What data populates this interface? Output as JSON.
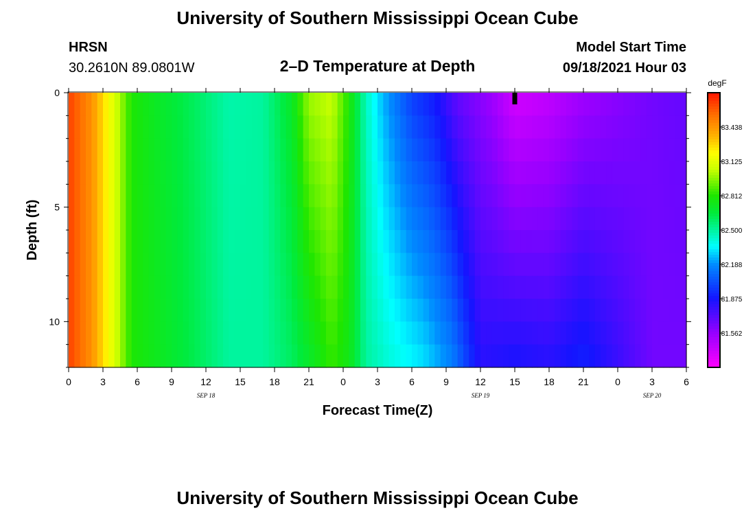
{
  "page": {
    "title_top": "University of Southern Mississippi Ocean Cube",
    "title_bottom": "University of Southern Mississippi Ocean Cube",
    "station_id": "HRSN",
    "station_coords": "30.2610N  89.0801W",
    "subtitle": "2–D Temperature at Depth",
    "model_label": "Model Start Time",
    "model_time": "09/18/2021 Hour 03"
  },
  "chart_data": {
    "type": "heatmap",
    "title": "2–D Temperature at Depth",
    "xlabel": "Forecast Time(Z)",
    "ylabel": "Depth (ft)",
    "units": "degF",
    "x_hours_range": [
      0,
      54
    ],
    "ylim": [
      0,
      12
    ],
    "x_ticks": [
      {
        "h": 0,
        "label": "0"
      },
      {
        "h": 3,
        "label": "3"
      },
      {
        "h": 6,
        "label": "6"
      },
      {
        "h": 9,
        "label": "9"
      },
      {
        "h": 12,
        "label": "12"
      },
      {
        "h": 15,
        "label": "15"
      },
      {
        "h": 18,
        "label": "18"
      },
      {
        "h": 21,
        "label": "21"
      },
      {
        "h": 24,
        "label": "0"
      },
      {
        "h": 27,
        "label": "3"
      },
      {
        "h": 30,
        "label": "6"
      },
      {
        "h": 33,
        "label": "9"
      },
      {
        "h": 36,
        "label": "12"
      },
      {
        "h": 39,
        "label": "15"
      },
      {
        "h": 42,
        "label": "18"
      },
      {
        "h": 45,
        "label": "21"
      },
      {
        "h": 48,
        "label": "0"
      },
      {
        "h": 51,
        "label": "3"
      },
      {
        "h": 54,
        "label": "6"
      }
    ],
    "date_labels": [
      {
        "h": 12,
        "label": "SEP 18"
      },
      {
        "h": 36,
        "label": "SEP 19"
      },
      {
        "h": 51,
        "label": "SEP 20"
      }
    ],
    "y_ticks": [
      {
        "d": 0,
        "label": "0"
      },
      {
        "d": 5,
        "label": "5"
      },
      {
        "d": 10,
        "label": "10"
      }
    ],
    "current_time_marker_h": 39,
    "colorbar": {
      "min": 81.25,
      "max": 83.75,
      "ticks": [
        "83.438",
        "83.125",
        "82.812",
        "82.500",
        "82.188",
        "81.875",
        "81.562"
      ]
    },
    "depth_layers_ft": [
      0,
      1,
      2,
      3,
      4,
      5,
      6,
      7,
      8,
      9,
      10,
      11
    ],
    "temperature_profile_surface": [
      {
        "h": 0,
        "t": 83.65
      },
      {
        "h": 2,
        "t": 83.45
      },
      {
        "h": 4,
        "t": 83.1
      },
      {
        "h": 5.5,
        "t": 82.8
      },
      {
        "h": 8,
        "t": 82.7
      },
      {
        "h": 11,
        "t": 82.6
      },
      {
        "h": 14,
        "t": 82.48
      },
      {
        "h": 17,
        "t": 82.5
      },
      {
        "h": 19.5,
        "t": 82.7
      },
      {
        "h": 21,
        "t": 82.98
      },
      {
        "h": 23,
        "t": 83.05
      },
      {
        "h": 24.5,
        "t": 82.8
      },
      {
        "h": 26,
        "t": 82.45
      },
      {
        "h": 27.5,
        "t": 82.25
      },
      {
        "h": 30,
        "t": 82.0
      },
      {
        "h": 32,
        "t": 81.9
      },
      {
        "h": 34,
        "t": 81.7
      },
      {
        "h": 37,
        "t": 81.55
      },
      {
        "h": 39,
        "t": 81.4
      },
      {
        "h": 42,
        "t": 81.45
      },
      {
        "h": 45,
        "t": 81.55
      },
      {
        "h": 48,
        "t": 81.6
      },
      {
        "h": 51,
        "t": 81.65
      },
      {
        "h": 54,
        "t": 81.68
      }
    ],
    "temperature_profile_bottom": [
      {
        "h": 0,
        "t": 83.65
      },
      {
        "h": 2,
        "t": 83.45
      },
      {
        "h": 4,
        "t": 83.1
      },
      {
        "h": 5.5,
        "t": 82.8
      },
      {
        "h": 8,
        "t": 82.72
      },
      {
        "h": 11,
        "t": 82.62
      },
      {
        "h": 14,
        "t": 82.5
      },
      {
        "h": 17,
        "t": 82.5
      },
      {
        "h": 19.5,
        "t": 82.6
      },
      {
        "h": 21,
        "t": 82.7
      },
      {
        "h": 23,
        "t": 82.85
      },
      {
        "h": 24.5,
        "t": 82.75
      },
      {
        "h": 26,
        "t": 82.5
      },
      {
        "h": 28,
        "t": 82.4
      },
      {
        "h": 31,
        "t": 82.3
      },
      {
        "h": 33.5,
        "t": 82.15
      },
      {
        "h": 36,
        "t": 81.82
      },
      {
        "h": 39,
        "t": 81.85
      },
      {
        "h": 42,
        "t": 81.82
      },
      {
        "h": 45,
        "t": 81.9
      },
      {
        "h": 48,
        "t": 81.78
      },
      {
        "h": 51,
        "t": 81.65
      },
      {
        "h": 54,
        "t": 81.65
      }
    ]
  }
}
